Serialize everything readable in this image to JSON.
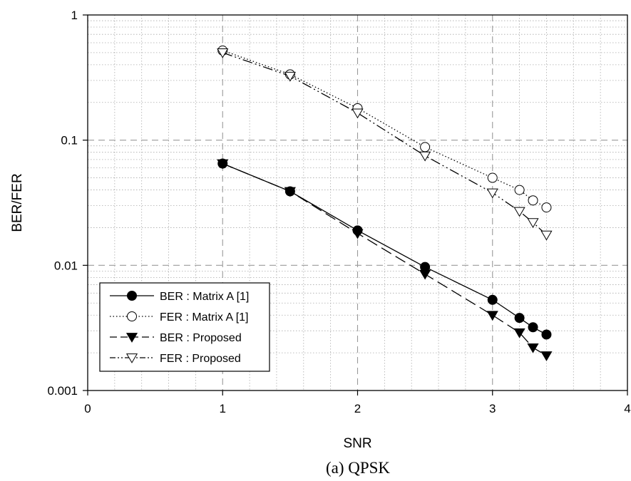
{
  "chart_data": {
    "type": "line",
    "title": "",
    "caption": "(a) QPSK",
    "xlabel": "SNR",
    "ylabel": "BER/FER",
    "xlim": [
      0,
      4
    ],
    "ylim": [
      0.001,
      1
    ],
    "yscale": "log",
    "x_ticks": [
      0,
      1,
      2,
      3,
      4
    ],
    "x_tick_labels": [
      "0",
      "1",
      "2",
      "3",
      "4"
    ],
    "y_ticks": [
      0.001,
      0.01,
      0.1,
      1
    ],
    "y_tick_labels": [
      "0.001",
      "0.01",
      "0.1",
      "1"
    ],
    "grid": "major dashed, minor dotted",
    "legend_position": "bottom-left",
    "series": [
      {
        "name": "BER : Matrix A [1]",
        "marker": "filled-circle",
        "line": "solid",
        "x": [
          1,
          1.5,
          2,
          2.5,
          3,
          3.2,
          3.3,
          3.4
        ],
        "y": [
          0.065,
          0.039,
          0.019,
          0.0097,
          0.0053,
          0.0038,
          0.0032,
          0.0028
        ]
      },
      {
        "name": "FER : Matrix A [1]",
        "marker": "open-circle",
        "line": "dotted",
        "x": [
          1,
          1.5,
          2,
          2.5,
          3,
          3.2,
          3.3,
          3.4
        ],
        "y": [
          0.52,
          0.335,
          0.18,
          0.088,
          0.05,
          0.04,
          0.033,
          0.029
        ]
      },
      {
        "name": "BER : Proposed",
        "marker": "filled-triangle-down",
        "line": "dashed",
        "x": [
          1,
          1.5,
          2,
          2.5,
          3,
          3.2,
          3.3,
          3.4
        ],
        "y": [
          0.065,
          0.039,
          0.018,
          0.0085,
          0.004,
          0.0029,
          0.0022,
          0.0019
        ]
      },
      {
        "name": "FER : Proposed",
        "marker": "open-triangle-down",
        "line": "dash-dot-dot",
        "x": [
          1,
          1.5,
          2,
          2.5,
          3,
          3.2,
          3.3,
          3.4
        ],
        "y": [
          0.5,
          0.325,
          0.165,
          0.075,
          0.038,
          0.027,
          0.022,
          0.0175
        ]
      }
    ]
  }
}
